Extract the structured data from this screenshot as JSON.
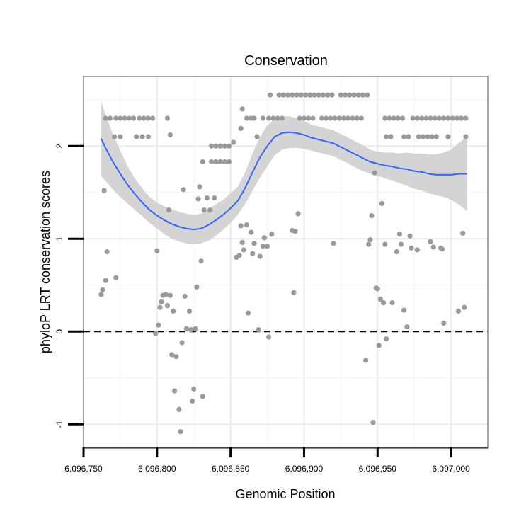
{
  "chart_data": {
    "type": "scatter",
    "title": "Conservation",
    "xlabel": "Genomic Position",
    "ylabel": "phyloP LRT conservation scores",
    "xlim": [
      6096750,
      6097025
    ],
    "ylim": [
      -1.25,
      2.75
    ],
    "x_ticks": [
      6096750,
      6096800,
      6096850,
      6096900,
      6096950,
      6097000
    ],
    "x_tick_labels": [
      "6,096,750",
      "6,096,800",
      "6,096,850",
      "6,096,900",
      "6,096,950",
      "6,097,000"
    ],
    "y_ticks": [
      -1,
      0,
      1,
      2
    ],
    "y_tick_labels": [
      "-1",
      "0",
      "1",
      "2"
    ],
    "grid": true,
    "reference_line": {
      "y": 0,
      "style": "dashed",
      "color": "#000000"
    },
    "colors": {
      "points": "#9a9a9a",
      "smooth_line": "#3366ff",
      "ribbon": "#d4d4d4",
      "border": "#888888"
    },
    "points": [
      [
        6096762,
        0.4
      ],
      [
        6096763,
        0.45
      ],
      [
        6096764,
        1.52
      ],
      [
        6096765,
        0.55
      ],
      [
        6096766,
        0.86
      ],
      [
        6096772,
        0.58
      ],
      [
        6096765,
        2.3
      ],
      [
        6096768,
        2.3
      ],
      [
        6096772,
        2.3
      ],
      [
        6096775,
        2.3
      ],
      [
        6096778,
        2.3
      ],
      [
        6096781,
        2.3
      ],
      [
        6096784,
        2.3
      ],
      [
        6096788,
        2.3
      ],
      [
        6096791,
        2.3
      ],
      [
        6096794,
        2.3
      ],
      [
        6096797,
        2.3
      ],
      [
        6096771,
        2.1
      ],
      [
        6096775,
        2.1
      ],
      [
        6096786,
        2.1
      ],
      [
        6096790,
        2.1
      ],
      [
        6096794,
        2.1
      ],
      [
        6096800,
        0.87
      ],
      [
        6096799,
        -0.02
      ],
      [
        6096801,
        0.07
      ],
      [
        6096802,
        0.26
      ],
      [
        6096803,
        0.32
      ],
      [
        6096804,
        0.39
      ],
      [
        6096806,
        0.4
      ],
      [
        6096807,
        0.28
      ],
      [
        6096808,
        1.31
      ],
      [
        6096809,
        0.39
      ],
      [
        6096810,
        -0.25
      ],
      [
        6096811,
        0.22
      ],
      [
        6096812,
        -0.64
      ],
      [
        6096813,
        -0.27
      ],
      [
        6096815,
        -0.84
      ],
      [
        6096816,
        -1.08
      ],
      [
        6096817,
        -0.12
      ],
      [
        6096818,
        1.53
      ],
      [
        6096819,
        0.38
      ],
      [
        6096820,
        0.03
      ],
      [
        6096822,
        0.22
      ],
      [
        6096823,
        0.02
      ],
      [
        6096824,
        -0.75
      ],
      [
        6096825,
        -0.62
      ],
      [
        6096826,
        0.03
      ],
      [
        6096827,
        0.48
      ],
      [
        6096828,
        1.43
      ],
      [
        6096829,
        1.56
      ],
      [
        6096830,
        0.76
      ],
      [
        6096831,
        -0.7
      ],
      [
        6096832,
        1.31
      ],
      [
        6096834,
        1.44
      ],
      [
        6096836,
        1.31
      ],
      [
        6096839,
        1.44
      ],
      [
        6096807,
        2.3
      ],
      [
        6096809,
        2.12
      ],
      [
        6096831,
        1.83
      ],
      [
        6096837,
        1.83
      ],
      [
        6096840,
        1.83
      ],
      [
        6096843,
        1.83
      ],
      [
        6096846,
        1.83
      ],
      [
        6096849,
        1.83
      ],
      [
        6096837,
        2.0
      ],
      [
        6096840,
        2.0
      ],
      [
        6096843,
        2.0
      ],
      [
        6096846,
        2.0
      ],
      [
        6096849,
        2.0
      ],
      [
        6096852,
        2.04
      ],
      [
        6096854,
        0.8
      ],
      [
        6096856,
        0.82
      ],
      [
        6096857,
        1.14
      ],
      [
        6096858,
        0.96
      ],
      [
        6096859,
        0.88
      ],
      [
        6096861,
        1.15
      ],
      [
        6096862,
        0.2
      ],
      [
        6096864,
        1.07
      ],
      [
        6096865,
        0.84
      ],
      [
        6096866,
        0.95
      ],
      [
        6096869,
        0.02
      ],
      [
        6096870,
        0.81
      ],
      [
        6096872,
        0.92
      ],
      [
        6096873,
        1.01
      ],
      [
        6096875,
        0.92
      ],
      [
        6096876,
        -0.06
      ],
      [
        6096878,
        1.05
      ],
      [
        6096857,
        2.19
      ],
      [
        6096858,
        2.4
      ],
      [
        6096861,
        2.3
      ],
      [
        6096864,
        2.3
      ],
      [
        6096866,
        2.3
      ],
      [
        6096868,
        2.1
      ],
      [
        6096872,
        2.3
      ],
      [
        6096876,
        2.3
      ],
      [
        6096879,
        2.3
      ],
      [
        6096882,
        2.3
      ],
      [
        6096885,
        2.3
      ],
      [
        6096877,
        2.55
      ],
      [
        6096883,
        2.55
      ],
      [
        6096886,
        2.55
      ],
      [
        6096889,
        2.55
      ],
      [
        6096892,
        2.55
      ],
      [
        6096895,
        2.55
      ],
      [
        6096898,
        2.55
      ],
      [
        6096901,
        2.55
      ],
      [
        6096904,
        2.55
      ],
      [
        6096907,
        2.55
      ],
      [
        6096910,
        2.55
      ],
      [
        6096913,
        2.55
      ],
      [
        6096916,
        2.55
      ],
      [
        6096919,
        2.55
      ],
      [
        6096925,
        2.55
      ],
      [
        6096928,
        2.55
      ],
      [
        6096931,
        2.55
      ],
      [
        6096934,
        2.55
      ],
      [
        6096937,
        2.55
      ],
      [
        6096940,
        2.55
      ],
      [
        6096943,
        2.55
      ],
      [
        6096897,
        2.3
      ],
      [
        6096900,
        2.3
      ],
      [
        6096903,
        2.3
      ],
      [
        6096906,
        2.3
      ],
      [
        6096912,
        2.3
      ],
      [
        6096915,
        2.3
      ],
      [
        6096918,
        2.3
      ],
      [
        6096921,
        2.3
      ],
      [
        6096924,
        2.3
      ],
      [
        6096927,
        2.3
      ],
      [
        6096930,
        2.3
      ],
      [
        6096933,
        2.3
      ],
      [
        6096936,
        2.3
      ],
      [
        6096939,
        2.3
      ],
      [
        6096893,
        0.42
      ],
      [
        6096892,
        1.09
      ],
      [
        6096894,
        1.08
      ],
      [
        6096896,
        1.27
      ],
      [
        6096920,
        0.95
      ],
      [
        6096942,
        -0.31
      ],
      [
        6096944,
        0.94
      ],
      [
        6096945,
        0.99
      ],
      [
        6096946,
        1.25
      ],
      [
        6096947,
        -0.98
      ],
      [
        6096948,
        1.71
      ],
      [
        6096949,
        0.47
      ],
      [
        6096950,
        0.46
      ],
      [
        6096951,
        -0.15
      ],
      [
        6096952,
        0.35
      ],
      [
        6096953,
        1.38
      ],
      [
        6096954,
        0.31
      ],
      [
        6096955,
        0.94
      ],
      [
        6096956,
        -0.08
      ],
      [
        6096960,
        0.31
      ],
      [
        6096963,
        0.86
      ],
      [
        6096965,
        1.05
      ],
      [
        6096966,
        0.94
      ],
      [
        6096968,
        0.23
      ],
      [
        6096970,
        0.05
      ],
      [
        6096972,
        1.03
      ],
      [
        6096973,
        0.9
      ],
      [
        6096977,
        0.88
      ],
      [
        6096986,
        0.97
      ],
      [
        6096988,
        0.91
      ],
      [
        6096993,
        0.9
      ],
      [
        6096995,
        0.09
      ],
      [
        6096994,
        0.89
      ],
      [
        6097005,
        0.22
      ],
      [
        6097008,
        1.06
      ],
      [
        6097009,
        0.26
      ],
      [
        6096955,
        2.3
      ],
      [
        6096958,
        2.3
      ],
      [
        6096961,
        2.3
      ],
      [
        6096964,
        2.3
      ],
      [
        6096967,
        2.3
      ],
      [
        6096974,
        2.3
      ],
      [
        6096977,
        2.3
      ],
      [
        6096980,
        2.3
      ],
      [
        6096983,
        2.3
      ],
      [
        6096986,
        2.3
      ],
      [
        6096989,
        2.3
      ],
      [
        6096992,
        2.3
      ],
      [
        6096995,
        2.3
      ],
      [
        6096998,
        2.3
      ],
      [
        6097001,
        2.3
      ],
      [
        6097004,
        2.3
      ],
      [
        6097007,
        2.3
      ],
      [
        6097010,
        2.3
      ],
      [
        6096956,
        2.1
      ],
      [
        6096959,
        2.1
      ],
      [
        6096968,
        2.1
      ],
      [
        6096971,
        2.1
      ],
      [
        6096978,
        2.1
      ],
      [
        6096981,
        2.1
      ],
      [
        6096984,
        2.1
      ],
      [
        6096987,
        2.1
      ],
      [
        6096990,
        2.1
      ],
      [
        6096998,
        2.1
      ],
      [
        6097010,
        2.1
      ]
    ],
    "smooth": {
      "x": [
        6096762,
        6096765,
        6096770,
        6096775,
        6096780,
        6096785,
        6096790,
        6096795,
        6096800,
        6096805,
        6096810,
        6096815,
        6096820,
        6096825,
        6096830,
        6096835,
        6096840,
        6096845,
        6096850,
        6096855,
        6096860,
        6096865,
        6096870,
        6096875,
        6096880,
        6096885,
        6096890,
        6096895,
        6096900,
        6096905,
        6096910,
        6096915,
        6096920,
        6096925,
        6096930,
        6096935,
        6096940,
        6096945,
        6096950,
        6096955,
        6096960,
        6096965,
        6096970,
        6096975,
        6096980,
        6096985,
        6096990,
        6096995,
        6097000,
        6097005,
        6097011
      ],
      "y": [
        2.08,
        1.98,
        1.83,
        1.7,
        1.58,
        1.48,
        1.39,
        1.31,
        1.25,
        1.2,
        1.16,
        1.13,
        1.11,
        1.1,
        1.11,
        1.15,
        1.2,
        1.26,
        1.33,
        1.41,
        1.55,
        1.72,
        1.88,
        2.0,
        2.1,
        2.14,
        2.15,
        2.14,
        2.12,
        2.09,
        2.07,
        2.05,
        2.03,
        1.99,
        1.95,
        1.91,
        1.87,
        1.83,
        1.81,
        1.79,
        1.78,
        1.76,
        1.75,
        1.73,
        1.72,
        1.7,
        1.69,
        1.69,
        1.69,
        1.7,
        1.7
      ],
      "lower": [
        1.68,
        1.62,
        1.53,
        1.45,
        1.38,
        1.31,
        1.24,
        1.17,
        1.11,
        1.05,
        1.0,
        0.97,
        0.95,
        0.94,
        0.95,
        0.98,
        1.03,
        1.1,
        1.17,
        1.26,
        1.38,
        1.52,
        1.66,
        1.78,
        1.9,
        1.96,
        1.98,
        1.98,
        1.97,
        1.95,
        1.93,
        1.91,
        1.89,
        1.85,
        1.81,
        1.77,
        1.73,
        1.7,
        1.68,
        1.65,
        1.63,
        1.6,
        1.57,
        1.54,
        1.52,
        1.49,
        1.47,
        1.45,
        1.42,
        1.37,
        1.3
      ],
      "upper": [
        2.48,
        2.34,
        2.13,
        1.95,
        1.78,
        1.65,
        1.54,
        1.45,
        1.39,
        1.35,
        1.32,
        1.29,
        1.27,
        1.26,
        1.27,
        1.32,
        1.37,
        1.42,
        1.49,
        1.56,
        1.72,
        1.92,
        2.1,
        2.22,
        2.3,
        2.32,
        2.32,
        2.3,
        2.27,
        2.23,
        2.21,
        2.19,
        2.17,
        2.13,
        2.09,
        2.05,
        2.01,
        1.96,
        1.94,
        1.93,
        1.93,
        1.92,
        1.93,
        1.92,
        1.92,
        1.91,
        1.91,
        1.93,
        1.96,
        2.03,
        2.1
      ]
    }
  }
}
